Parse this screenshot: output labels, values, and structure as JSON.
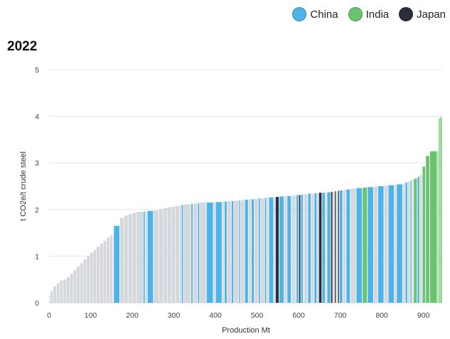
{
  "legend": [
    {
      "label": "China",
      "color": "#4fb3e8"
    },
    {
      "label": "India",
      "color": "#6ac46f"
    },
    {
      "label": "Japan",
      "color": "#2b2d38"
    }
  ],
  "chart_data": {
    "type": "bar",
    "title": "2022",
    "xlabel": "Production Mt",
    "ylabel": "t CO2e/t crude steel",
    "xlim": [
      0,
      945
    ],
    "ylim": [
      0,
      5
    ],
    "xticks": [
      0,
      100,
      200,
      300,
      400,
      500,
      600,
      700,
      800,
      900
    ],
    "yticks": [
      0,
      1,
      2,
      3,
      4,
      5
    ],
    "grid": true,
    "legend_position": "top-right",
    "other_color": "#d4d8dc",
    "bars": [
      {
        "x0": 0,
        "x1": 3,
        "value": 0.15,
        "country": "Other"
      },
      {
        "x0": 3,
        "x1": 10,
        "value": 0.25,
        "country": "Other"
      },
      {
        "x0": 10,
        "x1": 18,
        "value": 0.35,
        "country": "Other"
      },
      {
        "x0": 18,
        "x1": 26,
        "value": 0.42,
        "country": "Other"
      },
      {
        "x0": 26,
        "x1": 34,
        "value": 0.48,
        "country": "Other"
      },
      {
        "x0": 34,
        "x1": 42,
        "value": 0.5,
        "country": "Other"
      },
      {
        "x0": 42,
        "x1": 50,
        "value": 0.55,
        "country": "Other"
      },
      {
        "x0": 50,
        "x1": 58,
        "value": 0.62,
        "country": "Other"
      },
      {
        "x0": 58,
        "x1": 66,
        "value": 0.7,
        "country": "Other"
      },
      {
        "x0": 66,
        "x1": 74,
        "value": 0.78,
        "country": "Other"
      },
      {
        "x0": 74,
        "x1": 82,
        "value": 0.85,
        "country": "Other"
      },
      {
        "x0": 82,
        "x1": 90,
        "value": 0.93,
        "country": "Other"
      },
      {
        "x0": 90,
        "x1": 98,
        "value": 1.0,
        "country": "Other"
      },
      {
        "x0": 98,
        "x1": 106,
        "value": 1.07,
        "country": "Other"
      },
      {
        "x0": 106,
        "x1": 114,
        "value": 1.13,
        "country": "Other"
      },
      {
        "x0": 114,
        "x1": 122,
        "value": 1.2,
        "country": "Other"
      },
      {
        "x0": 122,
        "x1": 130,
        "value": 1.27,
        "country": "Other"
      },
      {
        "x0": 130,
        "x1": 138,
        "value": 1.33,
        "country": "Other"
      },
      {
        "x0": 138,
        "x1": 146,
        "value": 1.4,
        "country": "Other"
      },
      {
        "x0": 146,
        "x1": 153,
        "value": 1.45,
        "country": "Other"
      },
      {
        "x0": 153,
        "x1": 155,
        "value": 1.5,
        "country": "Other"
      },
      {
        "x0": 155,
        "x1": 170,
        "value": 1.65,
        "country": "China"
      },
      {
        "x0": 170,
        "x1": 180,
        "value": 1.82,
        "country": "Other"
      },
      {
        "x0": 180,
        "x1": 190,
        "value": 1.87,
        "country": "Other"
      },
      {
        "x0": 190,
        "x1": 200,
        "value": 1.9,
        "country": "Other"
      },
      {
        "x0": 200,
        "x1": 210,
        "value": 1.93,
        "country": "Other"
      },
      {
        "x0": 210,
        "x1": 226,
        "value": 1.95,
        "country": "Other"
      },
      {
        "x0": 226,
        "x1": 231,
        "value": 1.95,
        "country": "China"
      },
      {
        "x0": 231,
        "x1": 236,
        "value": 1.96,
        "country": "Other"
      },
      {
        "x0": 236,
        "x1": 251,
        "value": 1.97,
        "country": "China"
      },
      {
        "x0": 251,
        "x1": 264,
        "value": 1.98,
        "country": "Other"
      },
      {
        "x0": 264,
        "x1": 274,
        "value": 2.01,
        "country": "Other"
      },
      {
        "x0": 274,
        "x1": 284,
        "value": 2.03,
        "country": "Other"
      },
      {
        "x0": 284,
        "x1": 294,
        "value": 2.05,
        "country": "Other"
      },
      {
        "x0": 294,
        "x1": 304,
        "value": 2.06,
        "country": "Other"
      },
      {
        "x0": 304,
        "x1": 314,
        "value": 2.08,
        "country": "Other"
      },
      {
        "x0": 314,
        "x1": 318,
        "value": 2.09,
        "country": "Other"
      },
      {
        "x0": 318,
        "x1": 323,
        "value": 2.1,
        "country": "China"
      },
      {
        "x0": 323,
        "x1": 341,
        "value": 2.11,
        "country": "Other"
      },
      {
        "x0": 341,
        "x1": 346,
        "value": 2.12,
        "country": "China"
      },
      {
        "x0": 346,
        "x1": 357,
        "value": 2.13,
        "country": "Other"
      },
      {
        "x0": 357,
        "x1": 362,
        "value": 2.14,
        "country": "China"
      },
      {
        "x0": 362,
        "x1": 378,
        "value": 2.15,
        "country": "Other"
      },
      {
        "x0": 378,
        "x1": 395,
        "value": 2.15,
        "country": "China"
      },
      {
        "x0": 395,
        "x1": 400,
        "value": 2.16,
        "country": "Other"
      },
      {
        "x0": 400,
        "x1": 416,
        "value": 2.16,
        "country": "China"
      },
      {
        "x0": 416,
        "x1": 421,
        "value": 2.17,
        "country": "Other"
      },
      {
        "x0": 421,
        "x1": 428,
        "value": 2.17,
        "country": "China"
      },
      {
        "x0": 428,
        "x1": 438,
        "value": 2.18,
        "country": "Other"
      },
      {
        "x0": 438,
        "x1": 444,
        "value": 2.18,
        "country": "China"
      },
      {
        "x0": 444,
        "x1": 456,
        "value": 2.19,
        "country": "Other"
      },
      {
        "x0": 456,
        "x1": 460,
        "value": 2.2,
        "country": "China"
      },
      {
        "x0": 460,
        "x1": 470,
        "value": 2.2,
        "country": "Other"
      },
      {
        "x0": 470,
        "x1": 479,
        "value": 2.21,
        "country": "China"
      },
      {
        "x0": 479,
        "x1": 486,
        "value": 2.22,
        "country": "Other"
      },
      {
        "x0": 486,
        "x1": 493,
        "value": 2.22,
        "country": "China"
      },
      {
        "x0": 493,
        "x1": 503,
        "value": 2.23,
        "country": "Other"
      },
      {
        "x0": 503,
        "x1": 508,
        "value": 2.24,
        "country": "China"
      },
      {
        "x0": 508,
        "x1": 518,
        "value": 2.24,
        "country": "Other"
      },
      {
        "x0": 518,
        "x1": 523,
        "value": 2.25,
        "country": "China"
      },
      {
        "x0": 523,
        "x1": 528,
        "value": 2.26,
        "country": "Other"
      },
      {
        "x0": 528,
        "x1": 540,
        "value": 2.26,
        "country": "China"
      },
      {
        "x0": 540,
        "x1": 544,
        "value": 2.27,
        "country": "Other"
      },
      {
        "x0": 544,
        "x1": 553,
        "value": 2.27,
        "country": "Japan"
      },
      {
        "x0": 553,
        "x1": 565,
        "value": 2.28,
        "country": "China"
      },
      {
        "x0": 565,
        "x1": 572,
        "value": 2.29,
        "country": "Other"
      },
      {
        "x0": 572,
        "x1": 582,
        "value": 2.29,
        "country": "China"
      },
      {
        "x0": 582,
        "x1": 587,
        "value": 2.3,
        "country": "Other"
      },
      {
        "x0": 587,
        "x1": 590,
        "value": 2.3,
        "country": "China"
      },
      {
        "x0": 590,
        "x1": 594,
        "value": 2.31,
        "country": "Other"
      },
      {
        "x0": 594,
        "x1": 600,
        "value": 2.31,
        "country": "China"
      },
      {
        "x0": 600,
        "x1": 605,
        "value": 2.31,
        "country": "Japan"
      },
      {
        "x0": 605,
        "x1": 611,
        "value": 2.32,
        "country": "China"
      },
      {
        "x0": 611,
        "x1": 614,
        "value": 2.32,
        "country": "Other"
      },
      {
        "x0": 614,
        "x1": 616,
        "value": 2.33,
        "country": "China"
      },
      {
        "x0": 616,
        "x1": 622,
        "value": 2.33,
        "country": "Other"
      },
      {
        "x0": 622,
        "x1": 630,
        "value": 2.34,
        "country": "China"
      },
      {
        "x0": 630,
        "x1": 637,
        "value": 2.34,
        "country": "Other"
      },
      {
        "x0": 637,
        "x1": 644,
        "value": 2.35,
        "country": "China"
      },
      {
        "x0": 644,
        "x1": 648,
        "value": 2.35,
        "country": "Other"
      },
      {
        "x0": 648,
        "x1": 656,
        "value": 2.36,
        "country": "Japan"
      },
      {
        "x0": 656,
        "x1": 664,
        "value": 2.36,
        "country": "China"
      },
      {
        "x0": 664,
        "x1": 668,
        "value": 2.37,
        "country": "Other"
      },
      {
        "x0": 668,
        "x1": 677,
        "value": 2.37,
        "country": "China"
      },
      {
        "x0": 677,
        "x1": 682,
        "value": 2.38,
        "country": "Japan"
      },
      {
        "x0": 682,
        "x1": 686,
        "value": 2.38,
        "country": "Other"
      },
      {
        "x0": 686,
        "x1": 690,
        "value": 2.39,
        "country": "Japan"
      },
      {
        "x0": 690,
        "x1": 694,
        "value": 2.39,
        "country": "Other"
      },
      {
        "x0": 694,
        "x1": 698,
        "value": 2.4,
        "country": "Japan"
      },
      {
        "x0": 698,
        "x1": 706,
        "value": 2.41,
        "country": "China"
      },
      {
        "x0": 706,
        "x1": 714,
        "value": 2.42,
        "country": "Other"
      },
      {
        "x0": 714,
        "x1": 724,
        "value": 2.43,
        "country": "China"
      },
      {
        "x0": 724,
        "x1": 738,
        "value": 2.45,
        "country": "Other"
      },
      {
        "x0": 738,
        "x1": 753,
        "value": 2.46,
        "country": "China"
      },
      {
        "x0": 753,
        "x1": 765,
        "value": 2.47,
        "country": "India"
      },
      {
        "x0": 765,
        "x1": 780,
        "value": 2.48,
        "country": "China"
      },
      {
        "x0": 780,
        "x1": 790,
        "value": 2.49,
        "country": "Other"
      },
      {
        "x0": 790,
        "x1": 805,
        "value": 2.5,
        "country": "China"
      },
      {
        "x0": 805,
        "x1": 815,
        "value": 2.51,
        "country": "Other"
      },
      {
        "x0": 815,
        "x1": 830,
        "value": 2.52,
        "country": "China"
      },
      {
        "x0": 830,
        "x1": 835,
        "value": 2.53,
        "country": "Other"
      },
      {
        "x0": 835,
        "x1": 850,
        "value": 2.54,
        "country": "China"
      },
      {
        "x0": 850,
        "x1": 856,
        "value": 2.56,
        "country": "Other"
      },
      {
        "x0": 856,
        "x1": 862,
        "value": 2.58,
        "country": "China"
      },
      {
        "x0": 862,
        "x1": 868,
        "value": 2.6,
        "country": "Other"
      },
      {
        "x0": 868,
        "x1": 872,
        "value": 2.62,
        "country": "China"
      },
      {
        "x0": 872,
        "x1": 876,
        "value": 2.64,
        "country": "Other"
      },
      {
        "x0": 876,
        "x1": 885,
        "value": 2.66,
        "country": "India"
      },
      {
        "x0": 885,
        "x1": 891,
        "value": 2.7,
        "country": "China"
      },
      {
        "x0": 891,
        "x1": 897,
        "value": 2.75,
        "country": "Other"
      },
      {
        "x0": 897,
        "x1": 905,
        "value": 2.92,
        "country": "India"
      },
      {
        "x0": 905,
        "x1": 915,
        "value": 3.15,
        "country": "India"
      },
      {
        "x0": 915,
        "x1": 933,
        "value": 3.25,
        "country": "India"
      },
      {
        "x0": 933,
        "x1": 936,
        "value": 3.25,
        "country": "India"
      },
      {
        "x0": 936,
        "x1": 940,
        "value": 3.95,
        "country": "India"
      },
      {
        "x0": 940,
        "x1": 945,
        "value": 3.98,
        "country": "India"
      }
    ]
  }
}
